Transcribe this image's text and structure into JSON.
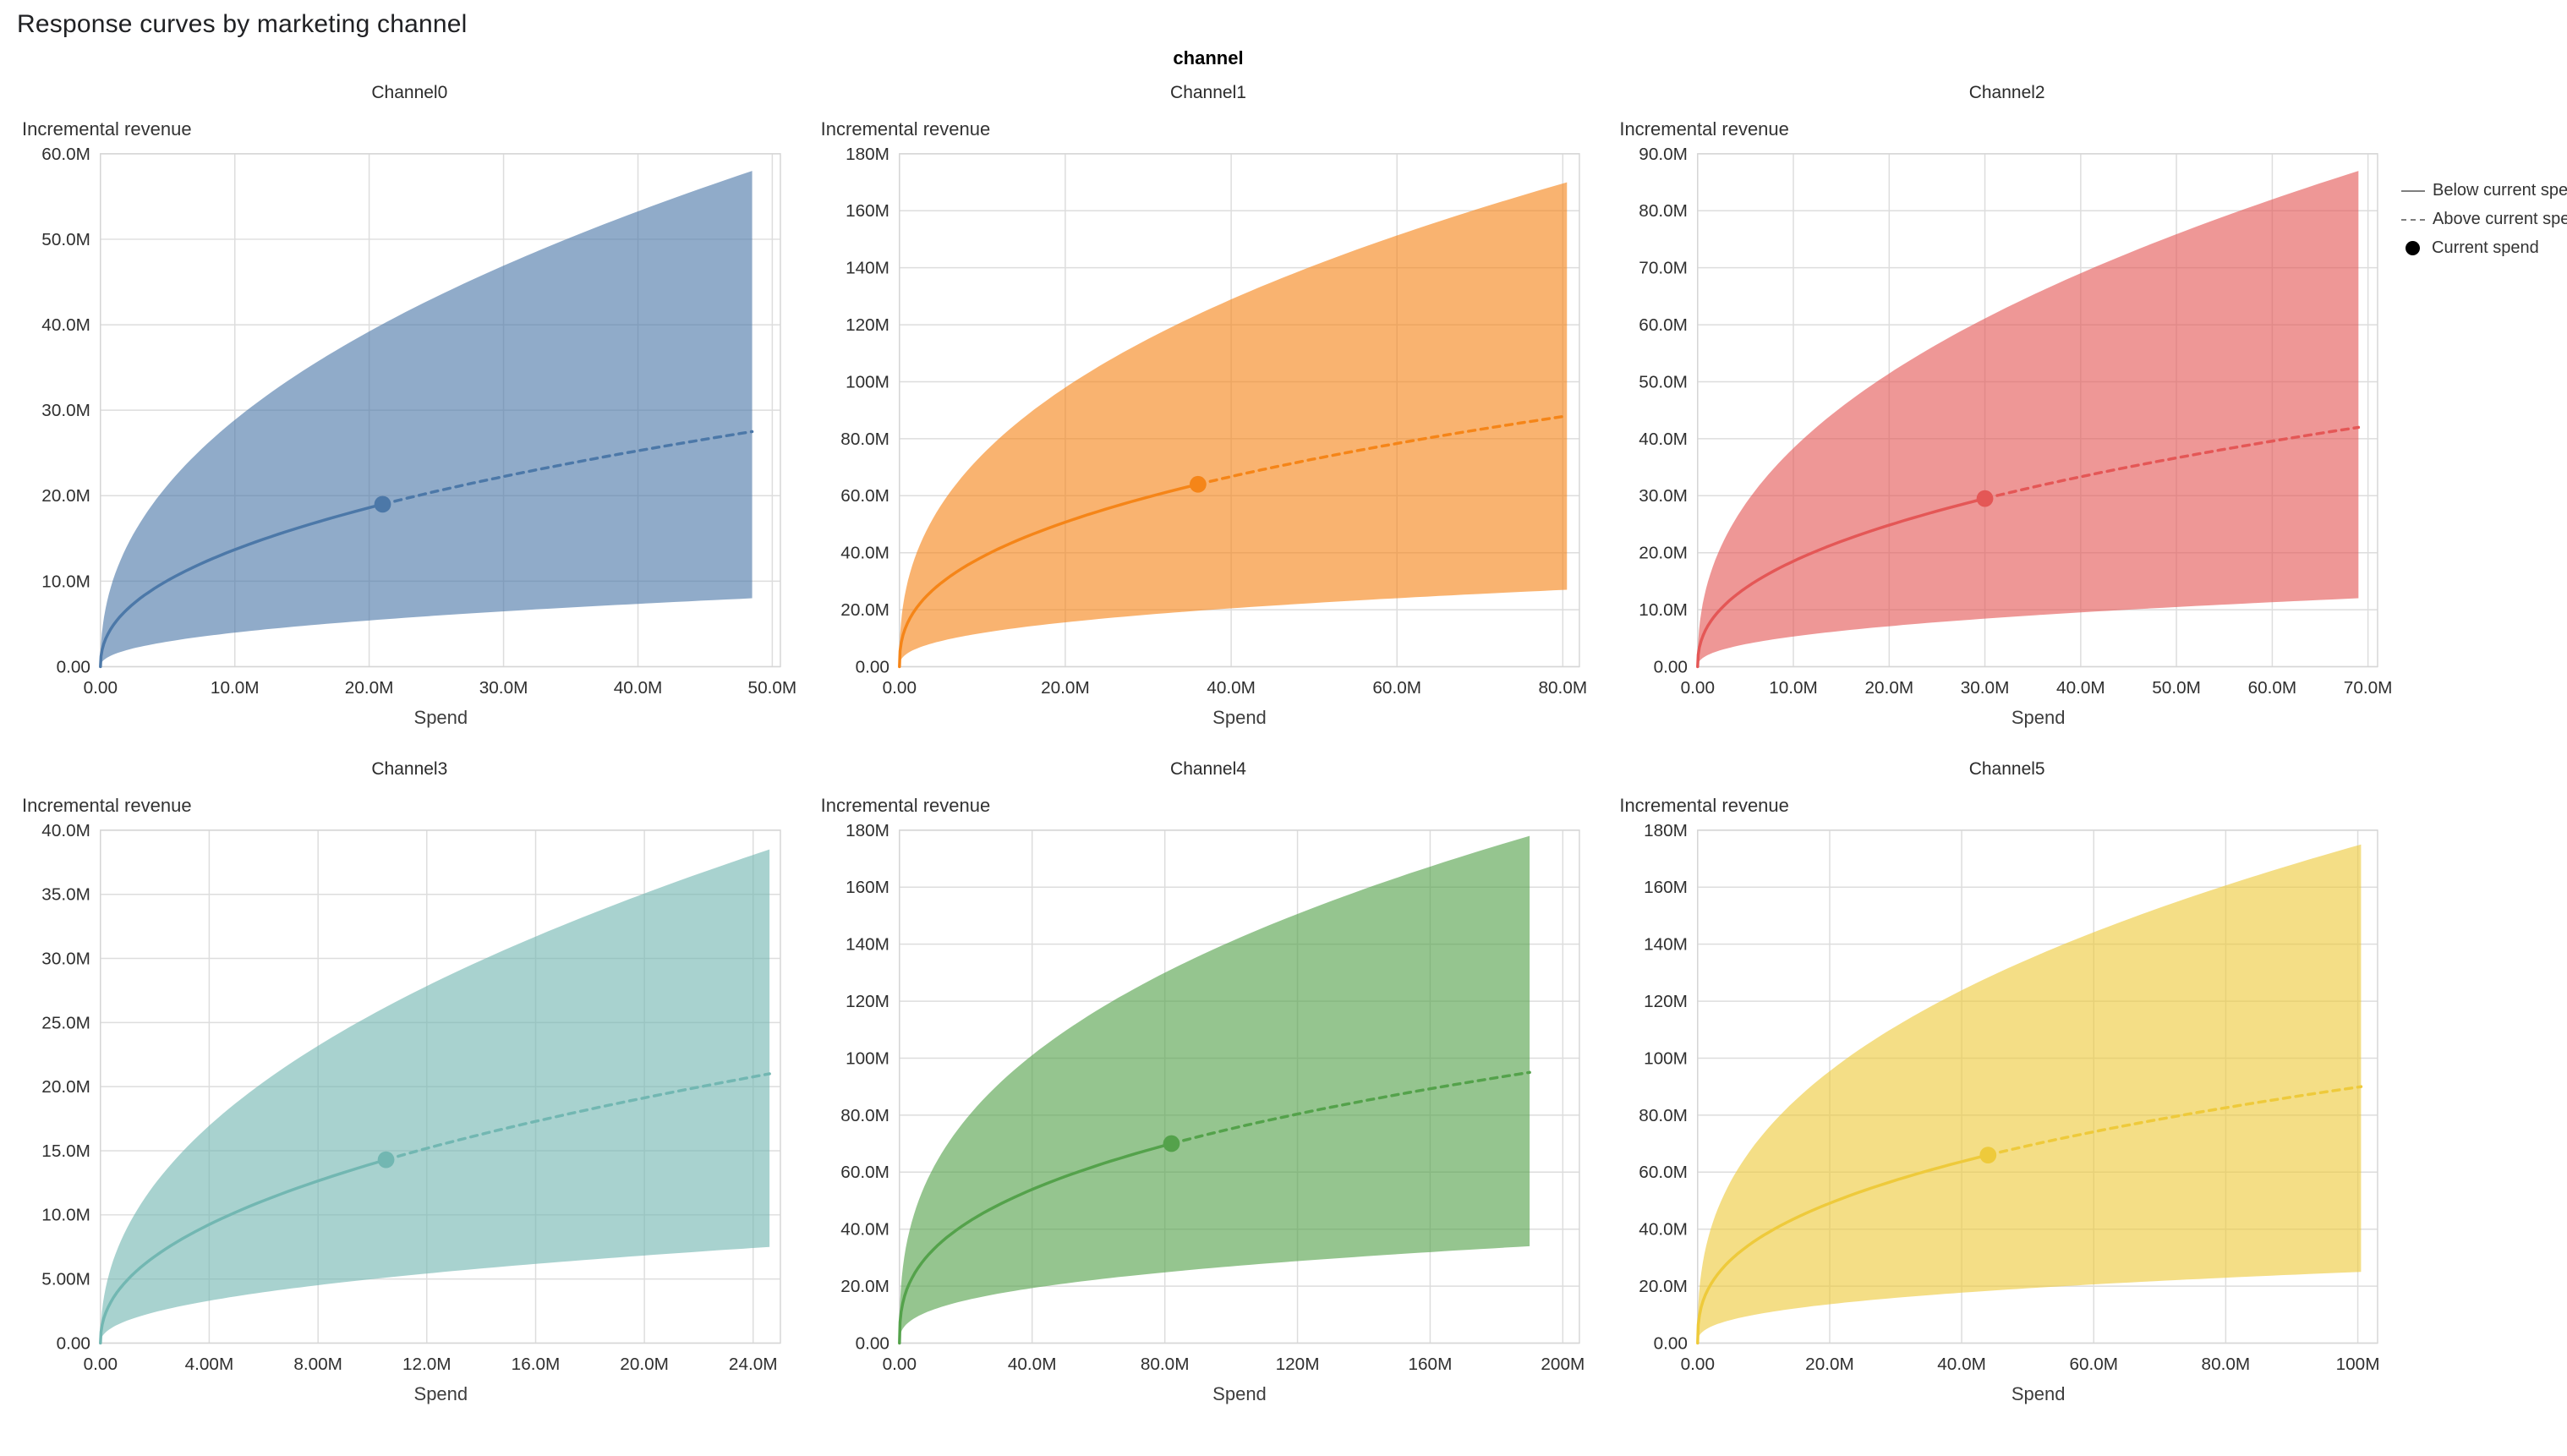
{
  "page": {
    "title": "Response curves by marketing channel",
    "facet_header": "channel"
  },
  "legend": {
    "items": [
      {
        "label": "Below current spend",
        "symbol": "solid-line"
      },
      {
        "label": "Above current spend",
        "symbol": "dashed-line"
      },
      {
        "label": "Current spend",
        "symbol": "filled-dot"
      }
    ]
  },
  "chart_data": [
    {
      "type": "area",
      "title": "Channel0",
      "xlabel": "Spend",
      "ylabel": "Incremental revenue",
      "color": "#4C78A8",
      "xlim": [
        0,
        50600000
      ],
      "ylim": [
        0,
        60000000
      ],
      "xticks": [
        0,
        10000000,
        20000000,
        30000000,
        40000000,
        50000000
      ],
      "xtick_labels": [
        "0.00",
        "10.0M",
        "20.0M",
        "30.0M",
        "40.0M",
        "50.0M"
      ],
      "yticks": [
        0,
        10000000,
        20000000,
        30000000,
        40000000,
        50000000,
        60000000
      ],
      "ytick_labels": [
        "0.00",
        "10.0M",
        "20.0M",
        "30.0M",
        "40.0M",
        "50.0M",
        "60.0M"
      ],
      "series": {
        "spend_end": 48500000,
        "mean_end": 27500000,
        "upper_end": 58000000,
        "lower_end": 8000000,
        "current_spend": {
          "x": 21000000,
          "y": 19000000
        }
      }
    },
    {
      "type": "area",
      "title": "Channel1",
      "xlabel": "Spend",
      "ylabel": "Incremental revenue",
      "color": "#F58518",
      "xlim": [
        0,
        82000000
      ],
      "ylim": [
        0,
        180000000
      ],
      "xticks": [
        0,
        20000000,
        40000000,
        60000000,
        80000000
      ],
      "xtick_labels": [
        "0.00",
        "20.0M",
        "40.0M",
        "60.0M",
        "80.0M"
      ],
      "yticks": [
        0,
        20000000,
        40000000,
        60000000,
        80000000,
        100000000,
        120000000,
        140000000,
        160000000,
        180000000
      ],
      "ytick_labels": [
        "0.00",
        "20.0M",
        "40.0M",
        "60.0M",
        "80.0M",
        "100M",
        "120M",
        "140M",
        "160M",
        "180M"
      ],
      "series": {
        "spend_end": 80500000,
        "mean_end": 88000000,
        "upper_end": 170000000,
        "lower_end": 27000000,
        "current_spend": {
          "x": 36000000,
          "y": 64000000
        }
      }
    },
    {
      "type": "area",
      "title": "Channel2",
      "xlabel": "Spend",
      "ylabel": "Incremental revenue",
      "color": "#E45756",
      "xlim": [
        0,
        71000000
      ],
      "ylim": [
        0,
        90000000
      ],
      "xticks": [
        0,
        10000000,
        20000000,
        30000000,
        40000000,
        50000000,
        60000000,
        70000000
      ],
      "xtick_labels": [
        "0.00",
        "10.0M",
        "20.0M",
        "30.0M",
        "40.0M",
        "50.0M",
        "60.0M",
        "70.0M"
      ],
      "yticks": [
        0,
        10000000,
        20000000,
        30000000,
        40000000,
        50000000,
        60000000,
        70000000,
        80000000,
        90000000
      ],
      "ytick_labels": [
        "0.00",
        "10.0M",
        "20.0M",
        "30.0M",
        "40.0M",
        "50.0M",
        "60.0M",
        "70.0M",
        "80.0M",
        "90.0M"
      ],
      "series": {
        "spend_end": 69000000,
        "mean_end": 42000000,
        "upper_end": 87000000,
        "lower_end": 12000000,
        "current_spend": {
          "x": 30000000,
          "y": 29500000
        }
      }
    },
    {
      "type": "area",
      "title": "Channel3",
      "xlabel": "Spend",
      "ylabel": "Incremental revenue",
      "color": "#72B7B2",
      "xlim": [
        0,
        25000000
      ],
      "ylim": [
        0,
        40000000
      ],
      "xticks": [
        0,
        4000000,
        8000000,
        12000000,
        16000000,
        20000000,
        24000000
      ],
      "xtick_labels": [
        "0.00",
        "4.00M",
        "8.00M",
        "12.0M",
        "16.0M",
        "20.0M",
        "24.0M"
      ],
      "yticks": [
        0,
        5000000,
        10000000,
        15000000,
        20000000,
        25000000,
        30000000,
        35000000,
        40000000
      ],
      "ytick_labels": [
        "0.00",
        "5.00M",
        "10.0M",
        "15.0M",
        "20.0M",
        "25.0M",
        "30.0M",
        "35.0M",
        "40.0M"
      ],
      "series": {
        "spend_end": 24600000,
        "mean_end": 21000000,
        "upper_end": 38500000,
        "lower_end": 7500000,
        "current_spend": {
          "x": 10500000,
          "y": 14300000
        }
      }
    },
    {
      "type": "area",
      "title": "Channel4",
      "xlabel": "Spend",
      "ylabel": "Incremental revenue",
      "color": "#54A24B",
      "xlim": [
        0,
        205000000
      ],
      "ylim": [
        0,
        180000000
      ],
      "xticks": [
        0,
        40000000,
        80000000,
        120000000,
        160000000,
        200000000
      ],
      "xtick_labels": [
        "0.00",
        "40.0M",
        "80.0M",
        "120M",
        "160M",
        "200M"
      ],
      "yticks": [
        0,
        20000000,
        40000000,
        60000000,
        80000000,
        100000000,
        120000000,
        140000000,
        160000000,
        180000000
      ],
      "ytick_labels": [
        "0.00",
        "20.0M",
        "40.0M",
        "60.0M",
        "80.0M",
        "100M",
        "120M",
        "140M",
        "160M",
        "180M"
      ],
      "series": {
        "spend_end": 190000000,
        "mean_end": 95000000,
        "upper_end": 178000000,
        "lower_end": 34000000,
        "current_spend": {
          "x": 82000000,
          "y": 70000000
        }
      }
    },
    {
      "type": "area",
      "title": "Channel5",
      "xlabel": "Spend",
      "ylabel": "Incremental revenue",
      "color": "#EECA3B",
      "xlim": [
        0,
        103000000
      ],
      "ylim": [
        0,
        180000000
      ],
      "xticks": [
        0,
        20000000,
        40000000,
        60000000,
        80000000,
        100000000
      ],
      "xtick_labels": [
        "0.00",
        "20.0M",
        "40.0M",
        "60.0M",
        "80.0M",
        "100M"
      ],
      "yticks": [
        0,
        20000000,
        40000000,
        60000000,
        80000000,
        100000000,
        120000000,
        140000000,
        160000000,
        180000000
      ],
      "ytick_labels": [
        "0.00",
        "20.0M",
        "40.0M",
        "60.0M",
        "80.0M",
        "100M",
        "120M",
        "140M",
        "160M",
        "180M"
      ],
      "series": {
        "spend_end": 100500000,
        "mean_end": 90000000,
        "upper_end": 175000000,
        "lower_end": 25000000,
        "current_spend": {
          "x": 44000000,
          "y": 66000000
        }
      }
    }
  ]
}
